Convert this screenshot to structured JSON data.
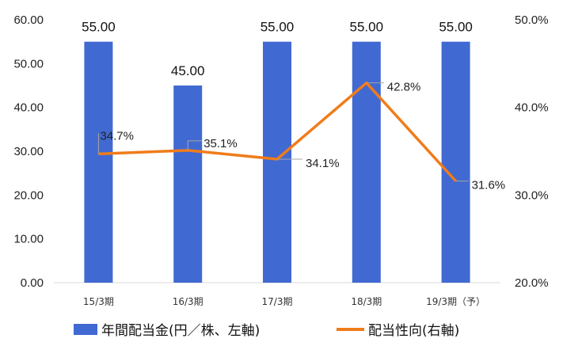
{
  "chart_data": {
    "type": "bar",
    "categories": [
      "15/3期",
      "16/3期",
      "17/3期",
      "18/3期",
      "19/3期（予）"
    ],
    "series": [
      {
        "name": "年間配当金(円／株、左軸)",
        "type": "bar",
        "axis": "left",
        "color": "#4169D2",
        "values": [
          55.0,
          45.0,
          55.0,
          55.0,
          55.0
        ],
        "labels": [
          "55.00",
          "45.00",
          "55.00",
          "55.00",
          "55.00"
        ]
      },
      {
        "name": "配当性向(右軸)",
        "type": "line",
        "axis": "right",
        "color": "#F07C1A",
        "values": [
          34.7,
          35.1,
          34.1,
          42.8,
          31.6
        ],
        "labels": [
          "34.7%",
          "35.1%",
          "34.1%",
          "42.8%",
          "31.6%"
        ]
      }
    ],
    "left_axis": {
      "ylim": [
        0,
        60
      ],
      "ticks": [
        "0.00",
        "10.00",
        "20.00",
        "30.00",
        "40.00",
        "50.00",
        "60.00"
      ]
    },
    "right_axis": {
      "ylim": [
        20,
        50
      ],
      "ticks": [
        "20.0%",
        "30.0%",
        "40.0%",
        "50.0%"
      ]
    },
    "grid": false,
    "legend": "bottom"
  }
}
